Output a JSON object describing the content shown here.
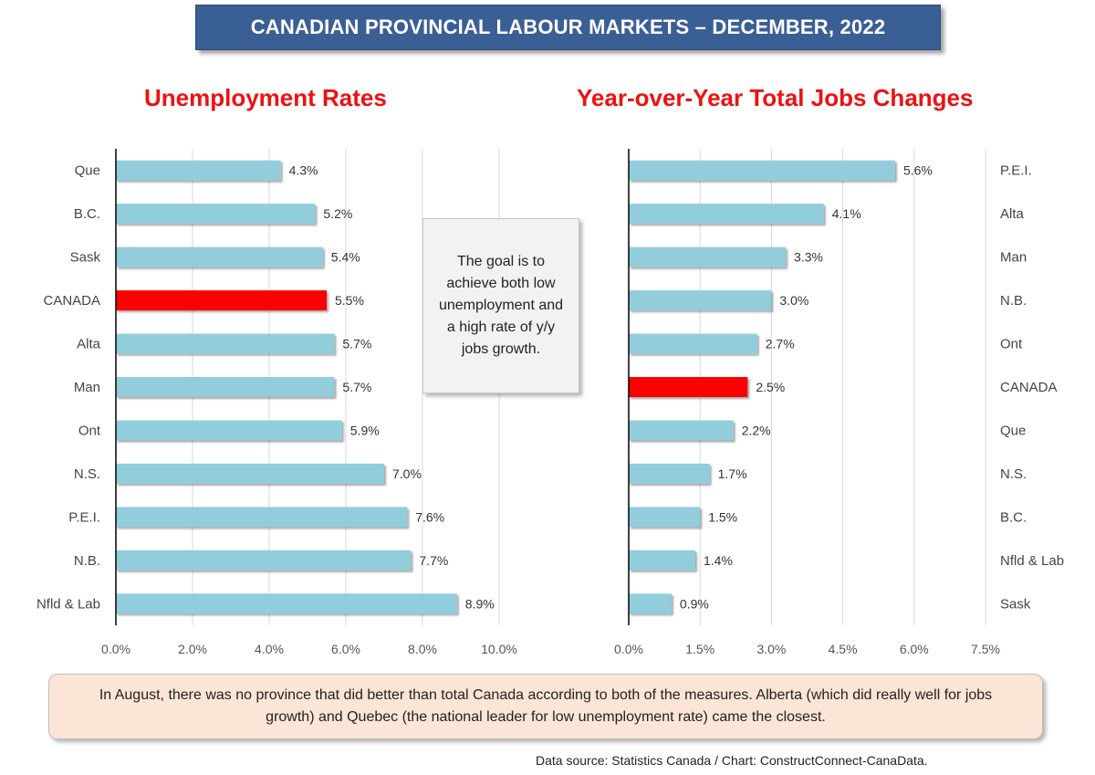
{
  "banner": {
    "title": "CANADIAN PROVINCIAL LABOUR MARKETS – DECEMBER, 2022"
  },
  "callout": {
    "text": "The goal is to achieve both low unemployment and a high rate of y/y jobs growth."
  },
  "note": {
    "text": "In August, there was no province that did better than total Canada according to both of the measures. Alberta (which did really well for jobs growth) and Quebec (the national leader for low unemployment rate) came the closest."
  },
  "source": {
    "text": "Data source: Statistics Canada / Chart: ConstructConnect-CanaData."
  },
  "colors": {
    "bar": "#92cddc",
    "highlight": "#ff0000",
    "banner": "#3a5f94",
    "title": "#ee1111"
  },
  "chart_data": [
    {
      "type": "bar",
      "orientation": "horizontal",
      "title": "Unemployment Rates",
      "categories": [
        "Que",
        "B.C.",
        "Sask",
        "CANADA",
        "Alta",
        "Man",
        "Ont",
        "N.S.",
        "P.E.I.",
        "N.B.",
        "Nfld & Lab"
      ],
      "values": [
        4.3,
        5.2,
        5.4,
        5.5,
        5.7,
        5.7,
        5.9,
        7.0,
        7.6,
        7.7,
        8.9
      ],
      "value_labels": [
        "4.3%",
        "5.2%",
        "5.4%",
        "5.5%",
        "5.7%",
        "5.7%",
        "5.9%",
        "7.0%",
        "7.6%",
        "7.7%",
        "8.9%"
      ],
      "highlight": "CANADA",
      "xlim": [
        0,
        10
      ],
      "ticks": [
        0,
        2,
        4,
        6,
        8,
        10
      ],
      "tick_labels": [
        "0.0%",
        "2.0%",
        "4.0%",
        "6.0%",
        "8.0%",
        "10.0%"
      ],
      "grid": true,
      "category_side": "left"
    },
    {
      "type": "bar",
      "orientation": "horizontal",
      "title": "Year-over-Year Total Jobs Changes",
      "categories": [
        "P.E.I.",
        "Alta",
        "Man",
        "N.B.",
        "Ont",
        "CANADA",
        "Que",
        "N.S.",
        "B.C.",
        "Nfld & Lab",
        "Sask"
      ],
      "values": [
        5.6,
        4.1,
        3.3,
        3.0,
        2.7,
        2.5,
        2.2,
        1.7,
        1.5,
        1.4,
        0.9
      ],
      "value_labels": [
        "5.6%",
        "4.1%",
        "3.3%",
        "3.0%",
        "2.7%",
        "2.5%",
        "2.2%",
        "1.7%",
        "1.5%",
        "1.4%",
        "0.9%"
      ],
      "highlight": "CANADA",
      "xlim": [
        0,
        7.5
      ],
      "ticks": [
        0,
        1.5,
        3,
        4.5,
        6,
        7.5
      ],
      "tick_labels": [
        "0.0%",
        "1.5%",
        "3.0%",
        "4.5%",
        "6.0%",
        "7.5%"
      ],
      "grid": true,
      "category_side": "right"
    }
  ]
}
